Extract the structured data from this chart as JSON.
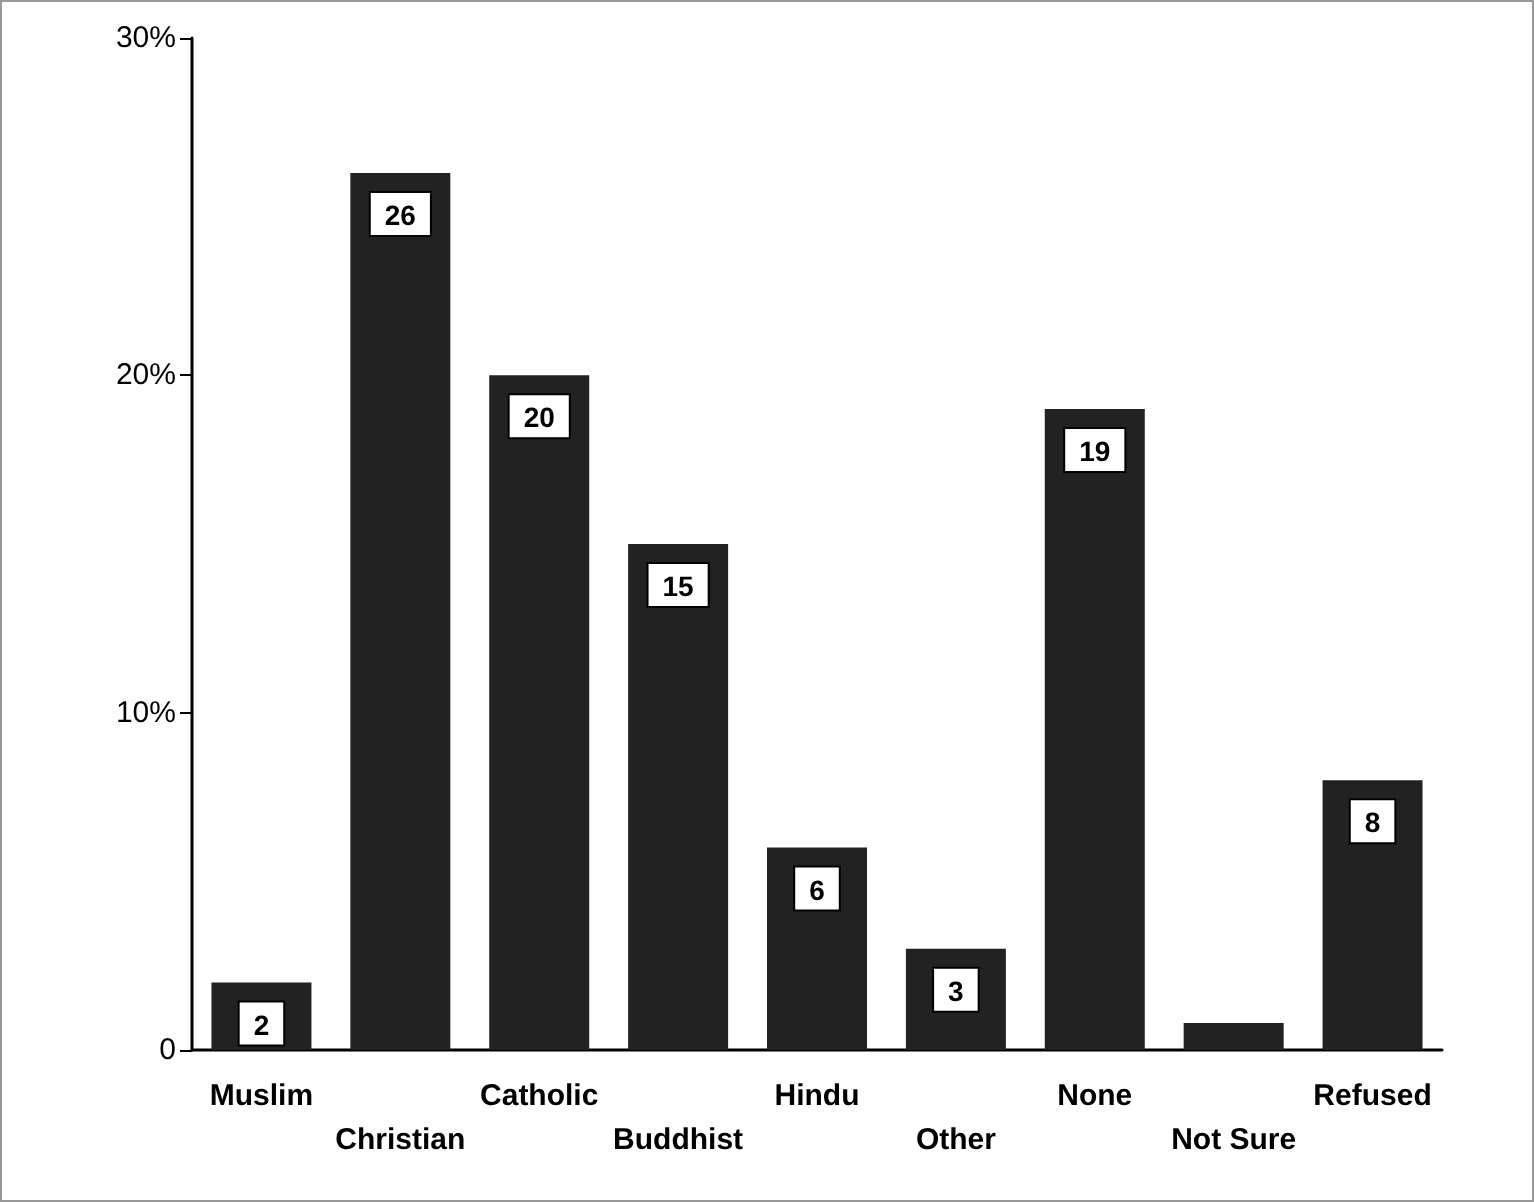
{
  "chart_data": {
    "type": "bar",
    "categories": [
      "Muslim",
      "Christian",
      "Catholic",
      "Buddhist",
      "Hindu",
      "Other",
      "None",
      "Not Sure",
      "Refused"
    ],
    "values": [
      2,
      26,
      20,
      15,
      6,
      3,
      19,
      0.8,
      8
    ],
    "value_labels": [
      "2",
      "26",
      "20",
      "15",
      "6",
      "3",
      "19",
      null,
      "8"
    ],
    "color": "#222222",
    "ylim": [
      0,
      30
    ],
    "yticks": [
      0,
      {
        "value": 10,
        "label": "10%"
      },
      {
        "value": 20,
        "label": "20%"
      },
      {
        "value": 30,
        "label": "30%"
      }
    ],
    "grid": false
  }
}
